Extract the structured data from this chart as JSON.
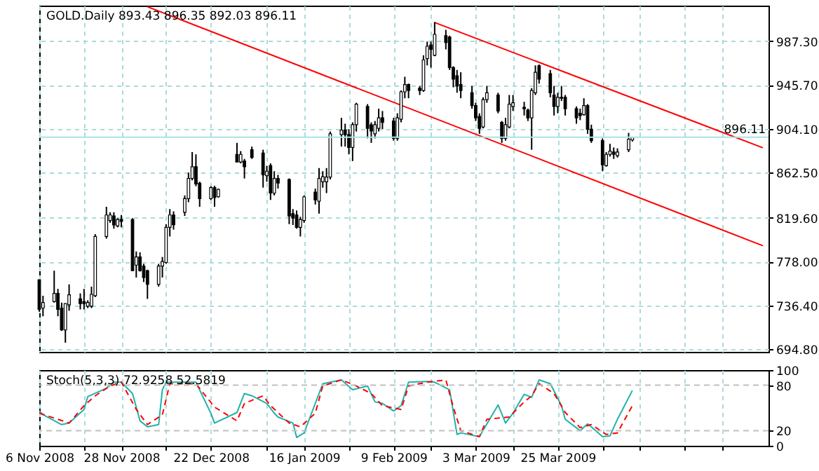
{
  "chart_data": [
    {
      "type": "candlestick",
      "title": "GOLD.Daily 893.43 896.35 892.03 896.11",
      "xlim": [
        "2008-11-06",
        "2009-05-20T12:00"
      ],
      "ylim": [
        692.2,
        1021.1
      ],
      "grid": true,
      "tick_labels": "y",
      "xticks": [
        {
          "value": "2008-11-06",
          "label": null
        },
        {
          "value": "2008-11-18",
          "label": null
        },
        {
          "value": "2008-11-28",
          "label": null
        },
        {
          "value": "2008-12-10",
          "label": null
        },
        {
          "value": "2008-12-22",
          "label": null
        },
        {
          "value": "2009-01-06",
          "label": null
        },
        {
          "value": "2009-01-16",
          "label": null
        },
        {
          "value": "2009-01-28",
          "label": null
        },
        {
          "value": "2009-02-09",
          "label": null
        },
        {
          "value": "2009-02-19",
          "label": null
        },
        {
          "value": "2009-03-03",
          "label": null
        },
        {
          "value": "2009-03-13",
          "label": null
        },
        {
          "value": "2009-03-25",
          "label": null
        },
        {
          "value": "2009-04-06",
          "label": null
        },
        {
          "value": "2009-04-16",
          "label": null
        },
        {
          "value": "2009-04-28",
          "label": null
        },
        {
          "value": "2009-05-08",
          "label": null
        }
      ],
      "yticks": [
        {
          "value": 694.8,
          "label": "694.80"
        },
        {
          "value": 736.4,
          "label": "736.40"
        },
        {
          "value": 778,
          "label": "778.00"
        },
        {
          "value": 819.6,
          "label": "819.60"
        },
        {
          "value": 862.5,
          "label": "862.50"
        },
        {
          "value": 904.1,
          "label": "904.10"
        },
        {
          "value": 945.7,
          "label": "945.70"
        },
        {
          "value": 987.3,
          "label": "987.30"
        }
      ],
      "ref_lines": [
        {
          "axis": "y",
          "value": 896.11,
          "label": "896.11",
          "color": "#a8e4e4"
        }
      ],
      "x": [
        "2008-11-06",
        "2008-11-07",
        "2008-11-10",
        "2008-11-11",
        "2008-11-12",
        "2008-11-13",
        "2008-11-14",
        "2008-11-17",
        "2008-11-18",
        "2008-11-19",
        "2008-11-20",
        "2008-11-21",
        "2008-11-24",
        "2008-11-25",
        "2008-11-26",
        "2008-11-27",
        "2008-11-28",
        "2008-12-01",
        "2008-12-02",
        "2008-12-03",
        "2008-12-04",
        "2008-12-05",
        "2008-12-08",
        "2008-12-09",
        "2008-12-10",
        "2008-12-11",
        "2008-12-12",
        "2008-12-15",
        "2008-12-16",
        "2008-12-17",
        "2008-12-18",
        "2008-12-19",
        "2008-12-22",
        "2008-12-23",
        "2008-12-24",
        "2008-12-29",
        "2008-12-30",
        "2008-12-31",
        "2009-01-02",
        "2009-01-05",
        "2009-01-06",
        "2009-01-07",
        "2009-01-08",
        "2009-01-09",
        "2009-01-12",
        "2009-01-13",
        "2009-01-14",
        "2009-01-15",
        "2009-01-16",
        "2009-01-19",
        "2009-01-20",
        "2009-01-21",
        "2009-01-22",
        "2009-01-23",
        "2009-01-26",
        "2009-01-27",
        "2009-01-28",
        "2009-01-29",
        "2009-01-30",
        "2009-02-02",
        "2009-02-03",
        "2009-02-04",
        "2009-02-05",
        "2009-02-06",
        "2009-02-09",
        "2009-02-10",
        "2009-02-11",
        "2009-02-12",
        "2009-02-13",
        "2009-02-16",
        "2009-02-17",
        "2009-02-18",
        "2009-02-19",
        "2009-02-20",
        "2009-02-23",
        "2009-02-24",
        "2009-02-25",
        "2009-02-26",
        "2009-02-27",
        "2009-03-02",
        "2009-03-03",
        "2009-03-04",
        "2009-03-05",
        "2009-03-06",
        "2009-03-09",
        "2009-03-10",
        "2009-03-11",
        "2009-03-12",
        "2009-03-13",
        "2009-03-16",
        "2009-03-17",
        "2009-03-18",
        "2009-03-19",
        "2009-03-20",
        "2009-03-23",
        "2009-03-24",
        "2009-03-25",
        "2009-03-26",
        "2009-03-27",
        "2009-03-30",
        "2009-03-31",
        "2009-04-01",
        "2009-04-02",
        "2009-04-03",
        "2009-04-06",
        "2009-04-07",
        "2009-04-08",
        "2009-04-09",
        "2009-04-10",
        "2009-04-13",
        "2009-04-14"
      ],
      "series": [
        {
          "color": "#000000",
          "ohlc": [
            [
              760.7,
              760.7,
              730.3,
              732.5
            ],
            [
              733.8,
              745.5,
              726.0,
              739.0
            ],
            [
              739.9,
              769.3,
              739.0,
              747.7
            ],
            [
              747.7,
              752.0,
              726.0,
              732.5
            ],
            [
              733.8,
              739.0,
              712.1,
              713.0
            ],
            [
              713.0,
              738.1,
              700.9,
              738.1
            ],
            [
              736.9,
              756.3,
              731.2,
              746.4
            ],
            [
              742.5,
              747.7,
              732.5,
              738.1
            ],
            [
              739.9,
              752.0,
              732.5,
              738.1
            ],
            [
              735.6,
              741.2,
              733.8,
              739.0
            ],
            [
              735.6,
              754.2,
              733.8,
              746.8
            ],
            [
              745.5,
              804.0,
              744.2,
              801.8
            ],
            [
              801.8,
              830.0,
              799.7,
              822.2
            ],
            [
              817.0,
              824.8,
              814.8,
              822.2
            ],
            [
              821.3,
              824.8,
              809.2,
              812.7
            ],
            [
              811.8,
              819.2,
              810.5,
              817.9
            ],
            [
              817.9,
              822.2,
              810.5,
              816.1
            ],
            [
              817.9,
              819.2,
              769.3,
              769.3
            ],
            [
              774.6,
              787.5,
              762.8,
              782.3
            ],
            [
              782.3,
              786.7,
              768.5,
              769.3
            ],
            [
              773.7,
              775.8,
              758.5,
              762.8
            ],
            [
              769.3,
              770.2,
              742.5,
              756.3
            ],
            [
              756.3,
              775.8,
              754.2,
              773.7
            ],
            [
              773.7,
              782.3,
              762.8,
              778.0
            ],
            [
              777.1,
              813.5,
              775.8,
              810.5
            ],
            [
              810.5,
              827.8,
              801.8,
              822.2
            ],
            [
              822.2,
              825.7,
              808.3,
              813.0
            ],
            [
              824.8,
              840.8,
              821.3,
              837.8
            ],
            [
              837.8,
              862.5,
              834.3,
              856.9
            ],
            [
              856.9,
              882.0,
              855.1,
              868.1
            ],
            [
              868.1,
              879.8,
              849.5,
              851.7
            ],
            [
              852.5,
              853.8,
              830.0,
              837.8
            ],
            [
              837.8,
              849.5,
              836.5,
              848.2
            ],
            [
              848.2,
              850.0,
              830.0,
              838.7
            ],
            [
              839.5,
              847.3,
              838.7,
              846.5
            ],
            [
              879.8,
              890.7,
              872.5,
              872.5
            ],
            [
              872.5,
              882.9,
              871.2,
              879.8
            ],
            [
              873.4,
              875.5,
              856.9,
              868.1
            ],
            [
              884.2,
              887.2,
              875.5,
              876.8
            ],
            [
              881.1,
              884.2,
              848.2,
              860.3
            ],
            [
              859.5,
              869.0,
              853.8,
              863.8
            ],
            [
              869.0,
              871.2,
              836.5,
              843.0
            ],
            [
              843.0,
              863.8,
              840.8,
              856.9
            ],
            [
              856.9,
              860.3,
              847.3,
              852.5
            ],
            [
              856.0,
              856.9,
              813.5,
              821.3
            ],
            [
              823.5,
              827.8,
              812.7,
              819.2
            ],
            [
              822.2,
              826.5,
              809.2,
              810.5
            ],
            [
              810.5,
              820.5,
              801.8,
              817.9
            ],
            [
              817.0,
              840.8,
              814.8,
              839.5
            ],
            [
              843.9,
              847.3,
              832.2,
              836.5
            ],
            [
              835.2,
              866.8,
              823.5,
              856.9
            ],
            [
              853.8,
              863.8,
              848.2,
              858.6
            ],
            [
              853.8,
              866.8,
              843.0,
              858.2
            ],
            [
              858.2,
              901.5,
              856.0,
              899.3
            ],
            [
              898.5,
              914.5,
              887.2,
              902.8
            ],
            [
              902.8,
              908.9,
              887.2,
              898.5
            ],
            [
              898.5,
              903.7,
              879.8,
              886.3
            ],
            [
              886.3,
              910.2,
              873.4,
              908.0
            ],
            [
              908.0,
              928.8,
              901.5,
              927.5
            ],
            [
              925.3,
              927.5,
              895.0,
              904.5
            ],
            [
              907.8,
              910.2,
              890.7,
              902.0
            ],
            [
              899.3,
              911.5,
              895.0,
              908.0
            ],
            [
              904.5,
              923.2,
              901.5,
              914.5
            ],
            [
              914.5,
              921.0,
              903.7,
              910.2
            ],
            [
              911.5,
              914.5,
              892.8,
              895.0
            ],
            [
              895.0,
              918.8,
              892.8,
              914.5
            ],
            [
              913.2,
              940.5,
              910.2,
              939.2
            ],
            [
              939.2,
              953.5,
              933.1,
              946.1
            ],
            [
              946.1,
              947.0,
              933.1,
              940.5
            ],
            [
              942.7,
              944.8,
              936.2,
              940.5
            ],
            [
              940.5,
              973.9,
              939.2,
              969.5
            ],
            [
              970.8,
              986.9,
              964.3,
              982.5
            ],
            [
              983.8,
              986.9,
              962.2,
              979.5
            ],
            [
              973.9,
              1005.5,
              973.0,
              993.8
            ],
            [
              992.5,
              998.1,
              979.5,
              986.0
            ],
            [
              991.2,
              992.5,
              960.0,
              962.2
            ],
            [
              962.2,
              963.5,
              943.5,
              951.3
            ],
            [
              954.4,
              960.0,
              938.3,
              944.8
            ],
            [
              946.1,
              957.8,
              933.1,
              940.5
            ],
            [
              938.3,
              944.8,
              923.2,
              926.2
            ],
            [
              926.2,
              928.8,
              911.5,
              914.5
            ],
            [
              915.8,
              918.8,
              899.3,
              904.5
            ],
            [
              905.8,
              934.0,
              904.5,
              931.8
            ],
            [
              931.8,
              944.8,
              928.8,
              938.3
            ],
            [
              936.2,
              938.3,
              918.8,
              921.0
            ],
            [
              910.2,
              911.5,
              890.7,
              895.0
            ],
            [
              895.0,
              914.5,
              892.8,
              908.0
            ],
            [
              905.8,
              936.2,
              904.5,
              927.5
            ],
            [
              925.3,
              936.2,
              921.0,
              928.8
            ],
            [
              924.5,
              929.7,
              916.7,
              923.2
            ],
            [
              921.9,
              923.2,
              911.5,
              914.5
            ],
            [
              914.5,
              942.7,
              884.2,
              940.5
            ],
            [
              938.3,
              964.3,
              936.2,
              957.8
            ],
            [
              964.0,
              965.2,
              947.0,
              951.3
            ],
            [
              956.5,
              960.0,
              934.0,
              938.3
            ],
            [
              936.2,
              944.8,
              916.7,
              925.3
            ],
            [
              925.3,
              938.3,
              918.8,
              934.0
            ],
            [
              934.0,
              944.8,
              930.5,
              933.1
            ],
            [
              934.0,
              936.2,
              916.7,
              923.2
            ],
            [
              923.2,
              925.3,
              908.9,
              914.5
            ],
            [
              918.8,
              923.2,
              912.3,
              916.7
            ],
            [
              917.5,
              933.1,
              916.7,
              926.2
            ],
            [
              926.2,
              927.5,
              899.3,
              903.7
            ],
            [
              903.7,
              908.0,
              890.7,
              892.8
            ],
            [
              892.8,
              895.0,
              863.8,
              869.9
            ],
            [
              869.0,
              882.0,
              868.1,
              879.8
            ],
            [
              879.8,
              889.8,
              877.7,
              882.9
            ],
            [
              882.0,
              886.3,
              875.5,
              879.8
            ],
            [
              878.5,
              885.5,
              876.8,
              882.0
            ],
            [
              884.2,
              900.2,
              882.0,
              894.1
            ],
            [
              893.43,
              896.35,
              892.03,
              896.11
            ]
          ]
        },
        {
          "type": "line",
          "color": "#ff0000",
          "line_style": "solid",
          "x": [
            "2009-02-20",
            "2009-05-19"
          ],
          "values": [
            1005,
            886
          ]
        },
        {
          "type": "line",
          "color": "#ff0000",
          "line_style": "solid",
          "x": [
            "2008-12-05",
            "2009-05-19"
          ],
          "values": [
            1020,
            793
          ]
        }
      ]
    },
    {
      "type": "line",
      "title": "Stoch(5,3,3) 72.9258 52.5819",
      "xlim": [
        "2008-11-06",
        "2009-05-20T12:00"
      ],
      "ylim": [
        0,
        100
      ],
      "yticks": [
        0,
        20,
        80,
        100
      ],
      "grid": "x",
      "xticks": [
        {
          "value": "2008-11-06",
          "label": "6 Nov 2008"
        },
        {
          "value": "2008-11-18",
          "label": null
        },
        {
          "value": "2008-11-28",
          "label": "28 Nov 2008"
        },
        {
          "value": "2008-12-10",
          "label": null
        },
        {
          "value": "2008-12-22",
          "label": "22 Dec 2008"
        },
        {
          "value": "2009-01-06",
          "label": null
        },
        {
          "value": "2009-01-16",
          "label": "16 Jan 2009"
        },
        {
          "value": "2009-01-28",
          "label": null
        },
        {
          "value": "2009-02-09",
          "label": "9 Feb 2009"
        },
        {
          "value": "2009-02-19",
          "label": null
        },
        {
          "value": "2009-03-03",
          "label": "3 Mar 2009"
        },
        {
          "value": "2009-03-13",
          "label": null
        },
        {
          "value": "2009-03-25",
          "label": "25 Mar 2009"
        },
        {
          "value": "2009-04-06",
          "label": null
        },
        {
          "value": "2009-04-16",
          "label": null
        },
        {
          "value": "2009-04-28",
          "label": null
        },
        {
          "value": "2009-05-08",
          "label": null
        }
      ],
      "ref_lines": [
        {
          "axis": "y",
          "value": 80,
          "color": "#c0c0c0",
          "line_style": "dashed"
        },
        {
          "axis": "y",
          "value": 20,
          "color": "#c0c0c0",
          "line_style": "dashed"
        }
      ],
      "series": [
        {
          "color": "#20b2aa",
          "line_style": "solid",
          "x": [
            "2008-11-06",
            "2008-11-07",
            "2008-11-12",
            "2008-11-14",
            "2008-11-18",
            "2008-11-19",
            "2008-11-24",
            "2008-11-26",
            "2008-11-28",
            "2008-12-01",
            "2008-12-03",
            "2008-12-05",
            "2008-12-08",
            "2008-12-09",
            "2008-12-10",
            "2008-12-18",
            "2008-12-22",
            "2008-12-23",
            "2008-12-29",
            "2008-12-31",
            "2009-01-02",
            "2009-01-06",
            "2009-01-08",
            "2009-01-09",
            "2009-01-13",
            "2009-01-14",
            "2009-01-16",
            "2009-01-20",
            "2009-01-21",
            "2009-01-26",
            "2009-01-29",
            "2009-02-02",
            "2009-02-04",
            "2009-02-06",
            "2009-02-09",
            "2009-02-11",
            "2009-02-13",
            "2009-02-18",
            "2009-02-20",
            "2009-02-24",
            "2009-02-26",
            "2009-02-27",
            "2009-03-04",
            "2009-03-09",
            "2009-03-11",
            "2009-03-13",
            "2009-03-16",
            "2009-03-18",
            "2009-03-20",
            "2009-03-23",
            "2009-03-26",
            "2009-03-27",
            "2009-03-31",
            "2009-04-02",
            "2009-04-03",
            "2009-04-06",
            "2009-04-08",
            "2009-04-10",
            "2009-04-14"
          ],
          "values": [
            46,
            41,
            28,
            30,
            48,
            65,
            76,
            84,
            84,
            69,
            33,
            25,
            28,
            74,
            84,
            84,
            43,
            30,
            44,
            69,
            66,
            56,
            43,
            38,
            30,
            11,
            17,
            69,
            82,
            87,
            74,
            79,
            58,
            56,
            46,
            53,
            84,
            85,
            84,
            74,
            15,
            17,
            12,
            54,
            30,
            43,
            68,
            64,
            87,
            82,
            53,
            35,
            20,
            29,
            25,
            12,
            13,
            35,
            73
          ]
        },
        {
          "color": "#ff0000",
          "line_style": "dashed",
          "x": [
            "2008-11-06",
            "2008-11-11",
            "2008-11-14",
            "2008-11-18",
            "2008-11-21",
            "2008-11-25",
            "2008-11-28",
            "2008-12-02",
            "2008-12-05",
            "2008-12-09",
            "2008-12-11",
            "2008-12-18",
            "2008-12-23",
            "2008-12-29",
            "2008-12-31",
            "2009-01-05",
            "2009-01-07",
            "2009-01-12",
            "2009-01-15",
            "2009-01-19",
            "2009-01-21",
            "2009-01-26",
            "2009-01-30",
            "2009-02-03",
            "2009-02-06",
            "2009-02-11",
            "2009-02-13",
            "2009-02-18",
            "2009-02-23",
            "2009-02-25",
            "2009-02-27",
            "2009-03-04",
            "2009-03-06",
            "2009-03-12",
            "2009-03-16",
            "2009-03-18",
            "2009-03-20",
            "2009-03-24",
            "2009-03-27",
            "2009-03-31",
            "2009-04-03",
            "2009-04-07",
            "2009-04-10",
            "2009-04-14"
          ],
          "values": [
            43,
            35,
            30,
            53,
            66,
            79,
            84,
            48,
            28,
            41,
            82,
            82,
            51,
            33,
            56,
            66,
            53,
            30,
            25,
            43,
            79,
            87,
            79,
            69,
            53,
            48,
            79,
            84,
            87,
            51,
            20,
            12,
            35,
            38,
            58,
            66,
            82,
            69,
            44,
            24,
            28,
            15,
            17,
            53
          ]
        }
      ]
    }
  ]
}
